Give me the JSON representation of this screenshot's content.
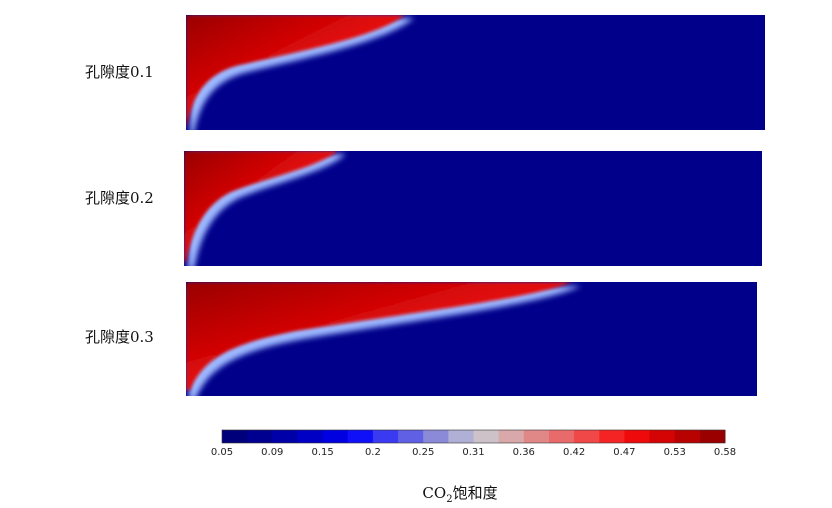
{
  "panels": [
    {
      "label": "孔隙度0.1"
    },
    {
      "label": "孔隙度0.2"
    },
    {
      "label": "孔隙度0.3"
    }
  ],
  "colorbar": {
    "ticks": [
      "0.05",
      "0.09",
      "0.15",
      "0.2",
      "0.25",
      "0.31",
      "0.36",
      "0.42",
      "0.47",
      "0.53",
      "0.58"
    ],
    "colors": [
      "#00007a",
      "#000090",
      "#0000a8",
      "#0000c4",
      "#0000e0",
      "#1010f8",
      "#3a3af0",
      "#6060e4",
      "#8a8ad8",
      "#b0b0d6",
      "#cdc2c8",
      "#d8a8aa",
      "#e08888",
      "#e86a6a",
      "#f04848",
      "#f52424",
      "#ee0a0a",
      "#d40404",
      "#b80202",
      "#9a0000"
    ],
    "label_main": "CO",
    "label_sub": "2",
    "label_tail": "饱和度"
  }
}
